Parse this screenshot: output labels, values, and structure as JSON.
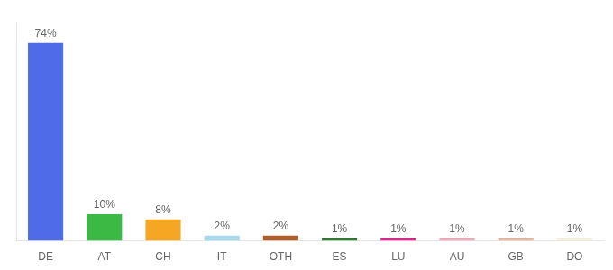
{
  "chart_data": {
    "type": "bar",
    "categories": [
      "DE",
      "AT",
      "CH",
      "IT",
      "OTH",
      "ES",
      "LU",
      "AU",
      "GB",
      "DO"
    ],
    "values": [
      74,
      10,
      8,
      2,
      2,
      1,
      1,
      1,
      1,
      1
    ],
    "value_labels": [
      "74%",
      "10%",
      "8%",
      "2%",
      "2%",
      "1%",
      "1%",
      "1%",
      "1%",
      "1%"
    ],
    "colors": [
      "#4F6BE8",
      "#3CB944",
      "#F5A623",
      "#A8D8EA",
      "#B05E2A",
      "#2E7D2E",
      "#E91E8C",
      "#F4A7B9",
      "#E8B4A0",
      "#F5F0D8"
    ],
    "ylim": [
      0,
      82
    ],
    "data_labels": true,
    "tick_labels": "x",
    "grid": false
  }
}
